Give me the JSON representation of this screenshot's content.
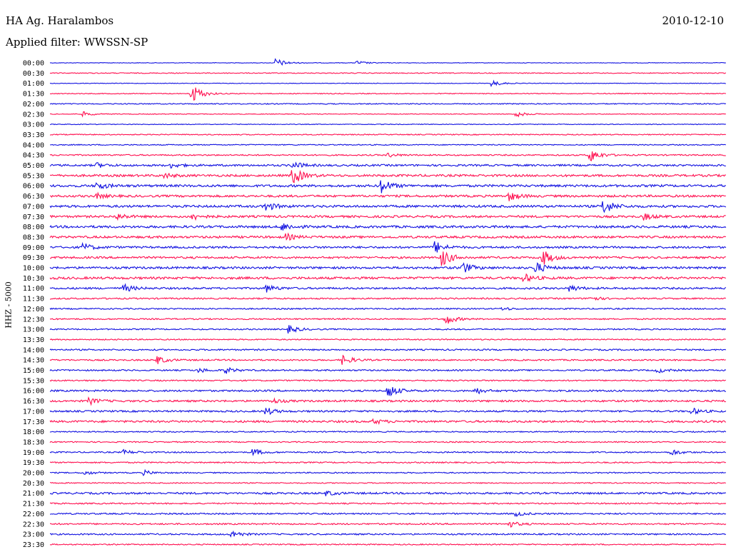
{
  "header": {
    "station": "HA Ag. Haralambos",
    "date": "2010-12-10",
    "filter_label": "Applied filter: WWSSN-SP"
  },
  "axis": {
    "channel_label": "HHZ - 5000"
  },
  "colors": {
    "even_rows": "#1010e0",
    "odd_rows": "#ff1050",
    "text": "#000000",
    "background": "#ffffff"
  },
  "chart_data": {
    "type": "line",
    "title": "HA Ag. Haralambos",
    "subtitle": "Applied filter: WWSSN-SP",
    "ylabel": "HHZ - 5000",
    "grid": false,
    "rows": [
      {
        "time": "00:00",
        "noise": 0.4,
        "events": [
          [
            0.335,
            6
          ],
          [
            0.455,
            2.5
          ]
        ]
      },
      {
        "time": "00:30",
        "noise": 0.6,
        "events": []
      },
      {
        "time": "01:00",
        "noise": 0.4,
        "events": [
          [
            0.655,
            4
          ]
        ]
      },
      {
        "time": "01:30",
        "noise": 0.6,
        "events": [
          [
            0.21,
            14
          ]
        ]
      },
      {
        "time": "02:00",
        "noise": 0.7,
        "events": []
      },
      {
        "time": "02:30",
        "noise": 0.5,
        "events": [
          [
            0.05,
            3
          ],
          [
            0.69,
            4
          ]
        ]
      },
      {
        "time": "03:00",
        "noise": 0.5,
        "events": []
      },
      {
        "time": "03:30",
        "noise": 0.7,
        "events": []
      },
      {
        "time": "04:00",
        "noise": 0.7,
        "events": []
      },
      {
        "time": "04:30",
        "noise": 0.9,
        "events": [
          [
            0.5,
            3
          ],
          [
            0.8,
            9
          ]
        ]
      },
      {
        "time": "05:00",
        "noise": 1.3,
        "events": [
          [
            0.07,
            3
          ],
          [
            0.18,
            3
          ],
          [
            0.36,
            5
          ]
        ]
      },
      {
        "time": "05:30",
        "noise": 1.5,
        "events": [
          [
            0.17,
            3
          ],
          [
            0.36,
            12
          ]
        ]
      },
      {
        "time": "06:00",
        "noise": 1.6,
        "events": [
          [
            0.07,
            5
          ],
          [
            0.49,
            10
          ]
        ]
      },
      {
        "time": "06:30",
        "noise": 1.5,
        "events": [
          [
            0.07,
            3
          ],
          [
            0.68,
            6
          ]
        ]
      },
      {
        "time": "07:00",
        "noise": 1.6,
        "events": [
          [
            0.32,
            6
          ],
          [
            0.82,
            10
          ]
        ]
      },
      {
        "time": "07:30",
        "noise": 1.5,
        "events": [
          [
            0.1,
            4
          ],
          [
            0.21,
            5
          ],
          [
            0.88,
            4
          ]
        ]
      },
      {
        "time": "08:00",
        "noise": 1.6,
        "events": [
          [
            0.345,
            5
          ]
        ]
      },
      {
        "time": "08:30",
        "noise": 1.5,
        "events": [
          [
            0.35,
            4
          ]
        ]
      },
      {
        "time": "09:00",
        "noise": 1.4,
        "events": [
          [
            0.05,
            5
          ],
          [
            0.57,
            8
          ]
        ]
      },
      {
        "time": "09:30",
        "noise": 1.4,
        "events": [
          [
            0.58,
            12
          ],
          [
            0.73,
            10
          ]
        ]
      },
      {
        "time": "10:00",
        "noise": 1.5,
        "events": [
          [
            0.61,
            8
          ],
          [
            0.72,
            7
          ]
        ]
      },
      {
        "time": "10:30",
        "noise": 1.6,
        "events": [
          [
            0.7,
            6
          ]
        ]
      },
      {
        "time": "11:00",
        "noise": 1.3,
        "events": [
          [
            0.11,
            5
          ],
          [
            0.32,
            5
          ],
          [
            0.77,
            4
          ]
        ]
      },
      {
        "time": "11:30",
        "noise": 1.0,
        "events": [
          [
            0.8,
            3
          ]
        ]
      },
      {
        "time": "12:00",
        "noise": 0.9,
        "events": [
          [
            0.67,
            2
          ]
        ]
      },
      {
        "time": "12:30",
        "noise": 0.9,
        "events": [
          [
            0.585,
            8
          ]
        ]
      },
      {
        "time": "13:00",
        "noise": 0.9,
        "events": [
          [
            0.355,
            5
          ]
        ]
      },
      {
        "time": "13:30",
        "noise": 0.8,
        "events": []
      },
      {
        "time": "14:00",
        "noise": 1.0,
        "events": []
      },
      {
        "time": "14:30",
        "noise": 1.0,
        "events": [
          [
            0.16,
            5
          ],
          [
            0.435,
            6
          ]
        ]
      },
      {
        "time": "15:00",
        "noise": 1.0,
        "events": [
          [
            0.22,
            3
          ],
          [
            0.26,
            4
          ],
          [
            0.9,
            3
          ]
        ]
      },
      {
        "time": "15:30",
        "noise": 0.9,
        "events": []
      },
      {
        "time": "16:00",
        "noise": 1.2,
        "events": [
          [
            0.5,
            10
          ],
          [
            0.63,
            4
          ]
        ]
      },
      {
        "time": "16:30",
        "noise": 1.3,
        "events": [
          [
            0.06,
            4
          ],
          [
            0.33,
            3
          ]
        ]
      },
      {
        "time": "17:00",
        "noise": 1.2,
        "events": [
          [
            0.32,
            5
          ],
          [
            0.95,
            4
          ]
        ]
      },
      {
        "time": "17:30",
        "noise": 1.4,
        "events": [
          [
            0.48,
            3
          ]
        ]
      },
      {
        "time": "18:00",
        "noise": 0.8,
        "events": []
      },
      {
        "time": "18:30",
        "noise": 0.8,
        "events": []
      },
      {
        "time": "19:00",
        "noise": 0.9,
        "events": [
          [
            0.11,
            3
          ],
          [
            0.3,
            5
          ],
          [
            0.92,
            4
          ]
        ]
      },
      {
        "time": "19:30",
        "noise": 0.9,
        "events": []
      },
      {
        "time": "20:00",
        "noise": 0.8,
        "events": [
          [
            0.05,
            3
          ],
          [
            0.14,
            3
          ]
        ]
      },
      {
        "time": "20:30",
        "noise": 0.7,
        "events": []
      },
      {
        "time": "21:00",
        "noise": 1.3,
        "events": [
          [
            0.41,
            3
          ]
        ]
      },
      {
        "time": "21:30",
        "noise": 0.9,
        "events": []
      },
      {
        "time": "22:00",
        "noise": 1.0,
        "events": [
          [
            0.69,
            3
          ]
        ]
      },
      {
        "time": "22:30",
        "noise": 1.0,
        "events": [
          [
            0.68,
            4
          ]
        ]
      },
      {
        "time": "23:00",
        "noise": 1.0,
        "events": [
          [
            0.27,
            5
          ]
        ]
      },
      {
        "time": "23:30",
        "noise": 0.8,
        "events": []
      }
    ]
  }
}
